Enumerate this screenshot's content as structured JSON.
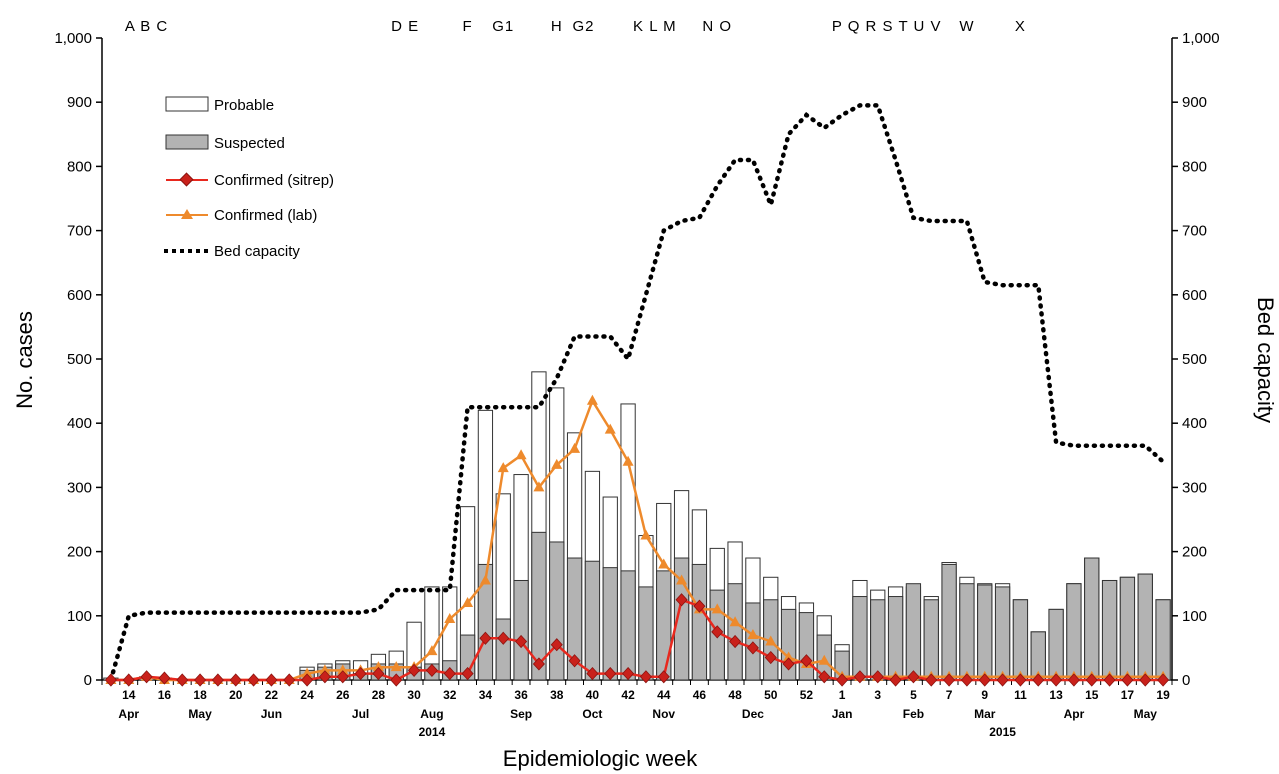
{
  "chart_data": {
    "type": "bar+line",
    "title": "",
    "xlabel": "Epidemiologic week",
    "ylabel": "No. cases",
    "y2label": "Bed capacity",
    "ylim": [
      0,
      1000
    ],
    "y2lim": [
      0,
      1000
    ],
    "yticks": [
      "0",
      "100",
      "200",
      "300",
      "400",
      "500",
      "600",
      "700",
      "800",
      "900",
      "1,000"
    ],
    "y2ticks": [
      "0",
      "100",
      "200",
      "300",
      "400",
      "500",
      "600",
      "700",
      "800",
      "900",
      "1,000"
    ],
    "weeks": [
      "13",
      "14",
      "15",
      "16",
      "17",
      "18",
      "19",
      "20",
      "21",
      "22",
      "23",
      "24",
      "25",
      "26",
      "27",
      "28",
      "29",
      "30",
      "31",
      "32",
      "33",
      "34",
      "35",
      "36",
      "37",
      "38",
      "39",
      "40",
      "41",
      "42",
      "43",
      "44",
      "45",
      "46",
      "47",
      "48",
      "49",
      "50",
      "51",
      "52",
      "53",
      "1",
      "2",
      "3",
      "4",
      "5",
      "6",
      "7",
      "8",
      "9",
      "10",
      "11",
      "12",
      "13",
      "14",
      "15",
      "16",
      "17",
      "18",
      "19"
    ],
    "week_tick_labels": [
      "14",
      "16",
      "18",
      "20",
      "22",
      "24",
      "26",
      "28",
      "30",
      "32",
      "34",
      "36",
      "38",
      "40",
      "42",
      "44",
      "46",
      "48",
      "50",
      "52",
      "1",
      "3",
      "5",
      "7",
      "9",
      "11",
      "13",
      "15",
      "17",
      "19"
    ],
    "month_labels": [
      {
        "label": "Apr",
        "week_index": 1
      },
      {
        "label": "May",
        "week_index": 5
      },
      {
        "label": "Jun",
        "week_index": 9
      },
      {
        "label": "Jul",
        "week_index": 14
      },
      {
        "label": "Aug",
        "week_index": 18
      },
      {
        "label": "Sep",
        "week_index": 23
      },
      {
        "label": "Oct",
        "week_index": 27
      },
      {
        "label": "Nov",
        "week_index": 31
      },
      {
        "label": "Dec",
        "week_index": 36
      },
      {
        "label": "Jan",
        "week_index": 41
      },
      {
        "label": "Feb",
        "week_index": 45
      },
      {
        "label": "Mar",
        "week_index": 49
      },
      {
        "label": "Apr",
        "week_index": 54
      },
      {
        "label": "May",
        "week_index": 58
      }
    ],
    "year_labels": [
      {
        "label": "2014",
        "week_index": 18
      },
      {
        "label": "2015",
        "week_index": 50
      }
    ],
    "event_labels": [
      {
        "label": "A B C",
        "week_index": 2
      },
      {
        "label": "D E",
        "week_index": 16.5
      },
      {
        "label": "F",
        "week_index": 20
      },
      {
        "label": "G1",
        "week_index": 22
      },
      {
        "label": "H",
        "week_index": 25
      },
      {
        "label": "G2",
        "week_index": 26.5
      },
      {
        "label": "K L M",
        "week_index": 30.5
      },
      {
        "label": "N O",
        "week_index": 34
      },
      {
        "label": "P Q R S T U V",
        "week_index": 43.5
      },
      {
        "label": "W",
        "week_index": 48
      },
      {
        "label": "X",
        "week_index": 51
      }
    ],
    "legend": [
      "Probable",
      "Suspected",
      "Confirmed (sitrep)",
      "Confirmed (lab)",
      "Bed capacity"
    ],
    "series": [
      {
        "name": "Suspected",
        "kind": "bar",
        "values": [
          0,
          0,
          0,
          0,
          0,
          0,
          0,
          0,
          0,
          0,
          0,
          15,
          20,
          25,
          10,
          25,
          25,
          20,
          25,
          30,
          70,
          180,
          95,
          155,
          230,
          215,
          190,
          185,
          175,
          170,
          145,
          170,
          190,
          180,
          140,
          150,
          120,
          125,
          110,
          105,
          70,
          45,
          130,
          125,
          130,
          150,
          125,
          180,
          150,
          148,
          145,
          125,
          75,
          110,
          150,
          190,
          155,
          160,
          165,
          125
        ]
      },
      {
        "name": "Probable",
        "kind": "bar",
        "values": [
          3,
          0,
          5,
          3,
          0,
          0,
          0,
          0,
          0,
          0,
          0,
          20,
          25,
          30,
          30,
          40,
          45,
          90,
          145,
          145,
          270,
          420,
          290,
          320,
          480,
          455,
          385,
          325,
          285,
          430,
          225,
          275,
          295,
          265,
          205,
          215,
          190,
          160,
          130,
          120,
          100,
          55,
          155,
          140,
          145,
          145,
          130,
          183,
          160,
          150,
          150,
          125,
          75,
          110,
          150,
          190,
          155,
          160,
          165,
          125
        ]
      },
      {
        "name": "Confirmed (sitrep)",
        "kind": "line",
        "values": [
          0,
          0,
          5,
          3,
          0,
          0,
          0,
          0,
          0,
          0,
          0,
          0,
          5,
          5,
          10,
          10,
          0,
          15,
          15,
          10,
          10,
          65,
          65,
          60,
          25,
          55,
          30,
          10,
          10,
          10,
          5,
          5,
          125,
          115,
          75,
          60,
          50,
          35,
          25,
          30,
          5,
          0,
          5,
          5,
          0,
          5,
          0,
          0,
          0,
          0,
          0,
          0,
          0,
          0,
          0,
          0,
          0,
          0,
          0,
          0
        ]
      },
      {
        "name": "Confirmed (lab)",
        "kind": "line",
        "values": [
          0,
          0,
          5,
          0,
          0,
          0,
          0,
          0,
          0,
          0,
          0,
          10,
          15,
          15,
          15,
          20,
          20,
          20,
          45,
          95,
          120,
          155,
          330,
          350,
          300,
          335,
          360,
          435,
          390,
          340,
          225,
          180,
          155,
          110,
          110,
          90,
          70,
          60,
          35,
          25,
          30,
          5,
          5,
          5,
          5,
          5,
          5,
          5,
          5,
          5,
          5,
          5,
          5,
          5,
          5,
          5,
          5,
          5,
          5,
          5
        ]
      },
      {
        "name": "Bed capacity",
        "kind": "line",
        "values": [
          0,
          100,
          105,
          105,
          105,
          105,
          105,
          105,
          105,
          105,
          105,
          105,
          105,
          105,
          105,
          110,
          140,
          140,
          140,
          140,
          425,
          425,
          425,
          425,
          425,
          470,
          535,
          535,
          535,
          500,
          600,
          700,
          715,
          720,
          770,
          810,
          810,
          740,
          850,
          880,
          860,
          880,
          895,
          895,
          810,
          720,
          715,
          715,
          715,
          620,
          615,
          615,
          615,
          370,
          365,
          365,
          365,
          365,
          365,
          340
        ]
      }
    ]
  },
  "colors": {
    "suspected_fill": "#b3b3b3",
    "probable_fill": "#ffffff",
    "bar_stroke": "#333333",
    "sitrep_line": "#e8281e",
    "sitrep_marker": "#c9211b",
    "lab_line": "#ee8a2c",
    "bed_line": "#000000",
    "axis": "#000000"
  }
}
